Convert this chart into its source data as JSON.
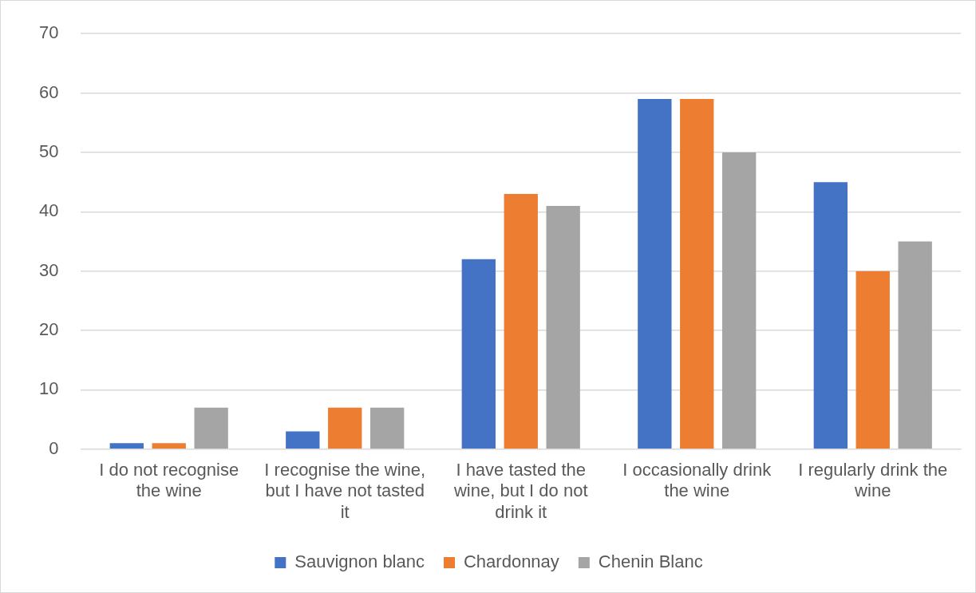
{
  "chart_data": {
    "type": "bar",
    "categories": [
      "I do not recognise the wine",
      "I recognise the wine, but I have not tasted it",
      "I have tasted the wine, but I do not drink it",
      "I occasionally drink the wine",
      "I regularly drink the wine"
    ],
    "series": [
      {
        "name": "Sauvignon blanc",
        "color": "#4472c4",
        "values": [
          1,
          3,
          32,
          59,
          45
        ]
      },
      {
        "name": "Chardonnay",
        "color": "#ed7d31",
        "values": [
          1,
          7,
          43,
          59,
          30
        ]
      },
      {
        "name": "Chenin Blanc",
        "color": "#a5a5a5",
        "values": [
          7,
          7,
          41,
          50,
          35
        ]
      }
    ],
    "ylim": [
      0,
      70
    ],
    "yticks": [
      0,
      10,
      20,
      30,
      40,
      50,
      60,
      70
    ],
    "grid": "y",
    "legend": "bottom"
  }
}
